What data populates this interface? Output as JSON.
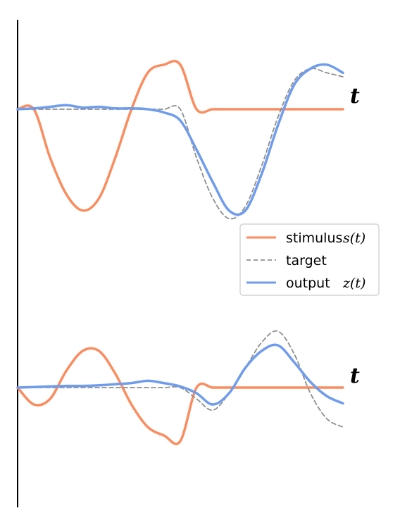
{
  "chart_data": [
    {
      "type": "line",
      "panel": "top",
      "xlabel": "t",
      "grid": false,
      "legend": "right",
      "series": [
        {
          "name": "stimulus",
          "legend_math": "s(t)",
          "color": "#fb8c5f",
          "style": "solid",
          "x": [
            0,
            0.5,
            1,
            1.5,
            2,
            2.5,
            3,
            3.5,
            4,
            4.5,
            5,
            5.5,
            6,
            6.5,
            7,
            7.5,
            8,
            8.5,
            9,
            9.5,
            10
          ],
          "y": [
            0,
            0,
            -0.6,
            -1.05,
            -1.25,
            -1.1,
            -0.6,
            0,
            0.45,
            0.55,
            0.55,
            0,
            0,
            0,
            0,
            0,
            0,
            0,
            0,
            0,
            0
          ]
        },
        {
          "name": "target",
          "color": "#8f8f8f",
          "style": "dashed",
          "x": [
            0,
            0.5,
            1,
            1.5,
            2,
            2.5,
            3,
            3.5,
            4,
            4.5,
            5,
            5.5,
            6,
            6.5,
            7,
            7.5,
            8,
            8.5,
            9,
            9.5,
            10
          ],
          "y": [
            0,
            0,
            0,
            0,
            0,
            0,
            0,
            0,
            0,
            0,
            0,
            -0.6,
            -1.1,
            -1.35,
            -1.2,
            -0.7,
            -0.1,
            0.35,
            0.5,
            0.45,
            0.4
          ]
        },
        {
          "name": "output",
          "legend_math": "z(t)",
          "color": "#6f9cec",
          "style": "solid",
          "x": [
            0,
            0.5,
            1,
            1.5,
            2,
            2.5,
            3,
            3.5,
            4,
            4.5,
            5,
            5.5,
            6,
            6.5,
            7,
            7.5,
            8,
            8.5,
            9,
            9.5,
            10
          ],
          "y": [
            0,
            0.01,
            0.03,
            0.05,
            0.02,
            0.03,
            0.01,
            0.01,
            0.0,
            -0.04,
            -0.14,
            -0.5,
            -0.9,
            -1.25,
            -1.25,
            -0.8,
            -0.2,
            0.3,
            0.5,
            0.55,
            0.45
          ]
        }
      ]
    },
    {
      "type": "line",
      "panel": "bottom",
      "xlabel": "t",
      "grid": false,
      "series": [
        {
          "name": "stimulus",
          "color": "#fb8c5f",
          "style": "solid",
          "x": [
            0,
            0.5,
            1,
            1.5,
            2,
            2.5,
            3,
            3.5,
            4,
            4.5,
            5,
            5.5,
            6,
            6.5,
            7,
            7.5,
            8,
            8.5,
            9,
            9.5,
            10
          ],
          "y": [
            0,
            -0.3,
            -0.2,
            0.3,
            0.65,
            0.65,
            0.25,
            -0.3,
            -0.7,
            -0.85,
            -0.95,
            0,
            0,
            0,
            0,
            0,
            0,
            0,
            0,
            0,
            0
          ]
        },
        {
          "name": "target",
          "color": "#8f8f8f",
          "style": "dashed",
          "x": [
            0,
            0.5,
            1,
            1.5,
            2,
            2.5,
            3,
            3.5,
            4,
            4.5,
            5,
            5.5,
            6,
            6.5,
            7,
            7.5,
            8,
            8.5,
            9,
            9.5,
            10
          ],
          "y": [
            0,
            0,
            0,
            0,
            0,
            0,
            0,
            0,
            0,
            0,
            0,
            -0.2,
            -0.4,
            -0.1,
            0.35,
            0.8,
            1.0,
            0.6,
            -0.1,
            -0.55,
            -0.7
          ]
        },
        {
          "name": "output",
          "color": "#6f9cec",
          "style": "solid",
          "x": [
            0,
            0.5,
            1,
            1.5,
            2,
            2.5,
            3,
            3.5,
            4,
            4.5,
            5,
            5.5,
            6,
            6.5,
            7,
            7.5,
            8,
            8.5,
            9,
            9.5,
            10
          ],
          "y": [
            0,
            0.01,
            0.02,
            0.03,
            0.03,
            0.04,
            0.06,
            0.08,
            0.12,
            0.08,
            0.02,
            -0.1,
            -0.3,
            -0.1,
            0.35,
            0.65,
            0.75,
            0.45,
            0.1,
            -0.15,
            -0.28
          ]
        }
      ]
    }
  ],
  "legend": {
    "entries": [
      {
        "label": "stimulus",
        "math": "s(t)",
        "color": "#fb8c5f",
        "style": "solid"
      },
      {
        "label": "target",
        "math": "",
        "color": "#8f8f8f",
        "style": "dashed"
      },
      {
        "label": "output",
        "math": "z(t)",
        "color": "#6f9cec",
        "style": "solid"
      }
    ]
  }
}
